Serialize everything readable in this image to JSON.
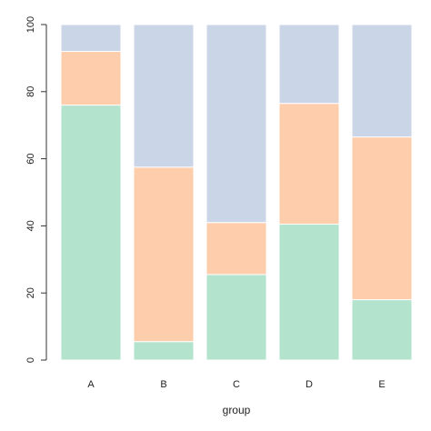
{
  "chart_data": {
    "type": "bar",
    "stacked": true,
    "categories": [
      "A",
      "B",
      "C",
      "D",
      "E"
    ],
    "series": [
      {
        "values": [
          76,
          5.5,
          25.5,
          40.5,
          18
        ],
        "color": "#b3e2cd"
      },
      {
        "values": [
          16,
          52,
          15.5,
          36,
          48.5
        ],
        "color": "#fdcdac"
      },
      {
        "values": [
          8,
          42.5,
          59,
          23.5,
          33.5
        ],
        "color": "#cbd5e8"
      }
    ],
    "title": "",
    "xlabel": "group",
    "ylabel": "",
    "ylim": [
      0,
      100
    ],
    "yticks": [
      0,
      20,
      40,
      60,
      80,
      100
    ],
    "grid": false
  }
}
